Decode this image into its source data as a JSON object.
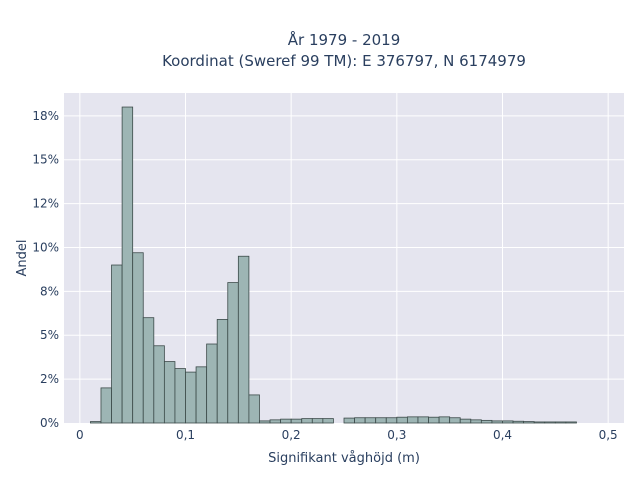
{
  "chart_data": {
    "type": "bar",
    "title_line1": "År 1979 - 2019",
    "title_line2": "Koordinat (Sweref 99 TM): E 376797, N 6174979",
    "xlabel": "Signifikant våghöjd (m)",
    "ylabel": "Andel",
    "x_tick_labels": [
      "0",
      "0,1",
      "0,2",
      "0,3",
      "0,4",
      "0,5"
    ],
    "x_tick_values": [
      0,
      0.1,
      0.2,
      0.3,
      0.4,
      0.5
    ],
    "y_tick_labels": [
      "0%",
      "2%",
      "5%",
      "8%",
      "10%",
      "12%",
      "15%",
      "18%"
    ],
    "y_tick_values": [
      0,
      0.025,
      0.05,
      0.075,
      0.1,
      0.125,
      0.15,
      0.175
    ],
    "xlim": [
      -0.015,
      0.515
    ],
    "ylim": [
      0,
      0.188
    ],
    "grid": true,
    "legend": "none",
    "bar_color": "#9db5b4",
    "bar_edge_color": "#3b4a49",
    "plot_bg": "#e5e5ef",
    "bin_width": 0.01,
    "bins_x": [
      0.015,
      0.025,
      0.035,
      0.045,
      0.055,
      0.065,
      0.075,
      0.085,
      0.095,
      0.105,
      0.115,
      0.125,
      0.135,
      0.145,
      0.155,
      0.165,
      0.175,
      0.185,
      0.195,
      0.205,
      0.215,
      0.225,
      0.235,
      0.245,
      0.255,
      0.265,
      0.275,
      0.285,
      0.295,
      0.305,
      0.315,
      0.325,
      0.335,
      0.345,
      0.355,
      0.365,
      0.375,
      0.385,
      0.395,
      0.405,
      0.415,
      0.425,
      0.435,
      0.445,
      0.455,
      0.465
    ],
    "values": [
      0.0008,
      0.02,
      0.09,
      0.18,
      0.097,
      0.06,
      0.044,
      0.035,
      0.031,
      0.029,
      0.032,
      0.045,
      0.059,
      0.08,
      0.095,
      0.016,
      0.0012,
      0.0018,
      0.0022,
      0.0022,
      0.0025,
      0.0025,
      0.0025,
      0.0,
      0.0028,
      0.003,
      0.003,
      0.003,
      0.003,
      0.0033,
      0.0035,
      0.0035,
      0.0033,
      0.0035,
      0.003,
      0.0022,
      0.0018,
      0.0015,
      0.0012,
      0.0012,
      0.001,
      0.0008,
      0.0006,
      0.0006,
      0.0006,
      0.0006
    ]
  }
}
